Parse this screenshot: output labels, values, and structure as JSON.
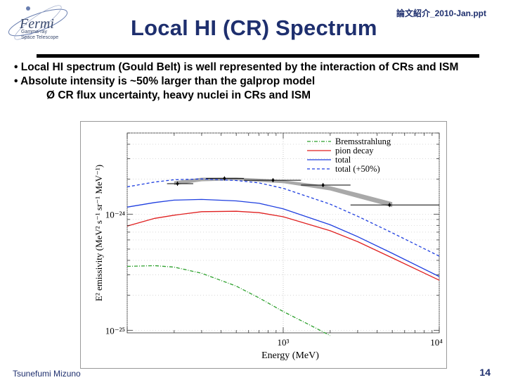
{
  "header": {
    "file_label": "論文紹介_2010-Jan.ppt",
    "title": "Local HI (CR) Spectrum"
  },
  "logo": {
    "name": "Fermi",
    "subtitle_line1": "Gamma-ray",
    "subtitle_line2": "Space Telescope"
  },
  "bullets": [
    "• Local HI spectrum (Gould Belt) is well represented by the interaction of CRs and ISM",
    "• Absolute intensity is ~50% larger than the galprop model",
    "Ø  CR flux uncertainty, heavy nuclei in CRs and ISM"
  ],
  "footer": {
    "author": "Tsunefumi Mizuno",
    "page": "14"
  },
  "colors": {
    "title": "#1e2f6e",
    "bremsstrahlung": "#2ca02c",
    "pion": "#e02020",
    "total": "#1f3fe0",
    "band": "#9a9a9a"
  },
  "chart_data": {
    "type": "line",
    "title": "",
    "xlabel": "Energy (MeV)",
    "ylabel": "E² emissivity (MeV² s⁻¹ sr⁻¹ MeV⁻¹)",
    "xscale": "log",
    "yscale": "log",
    "xlim": [
      100,
      10000
    ],
    "ylim": [
      9.5e-26,
      5e-24
    ],
    "x_tick_labels": [
      "10³",
      "10⁴"
    ],
    "y_tick_labels": [
      "10⁻²⁴",
      "10⁻²⁵"
    ],
    "legend_position": "top-right",
    "series": [
      {
        "name": "Bremsstrahlung",
        "style": "dash-dot",
        "color": "#2ca02c",
        "x": [
          100,
          150,
          200,
          300,
          500,
          700,
          1000,
          1500,
          2000
        ],
        "y": [
          3.55e-25,
          3.6e-25,
          3.5e-25,
          3.1e-25,
          2.4e-25,
          1.9e-25,
          1.45e-25,
          1.1e-25,
          9e-26
        ]
      },
      {
        "name": "pion decay",
        "style": "solid",
        "color": "#e02020",
        "x": [
          100,
          150,
          200,
          300,
          500,
          700,
          1000,
          2000,
          3000,
          5000,
          10000
        ],
        "y": [
          7.9e-25,
          9.2e-25,
          9.8e-25,
          1.05e-24,
          1.06e-24,
          1.03e-24,
          9.5e-25,
          7.2e-25,
          5.8e-25,
          4.2e-25,
          2.7e-25
        ]
      },
      {
        "name": "total",
        "style": "solid",
        "color": "#1f3fe0",
        "x": [
          100,
          150,
          200,
          300,
          500,
          700,
          1000,
          2000,
          3000,
          5000,
          10000
        ],
        "y": [
          1.15e-24,
          1.26e-24,
          1.32e-24,
          1.34e-24,
          1.3e-24,
          1.24e-24,
          1.11e-24,
          8.1e-25,
          6.4e-25,
          4.6e-25,
          2.9e-25
        ]
      },
      {
        "name": "total (+50%)",
        "style": "dashed",
        "color": "#1f3fe0",
        "x": [
          100,
          150,
          200,
          300,
          500,
          700,
          1000,
          2000,
          3000,
          5000,
          10000
        ],
        "y": [
          1.72e-24,
          1.89e-24,
          1.98e-24,
          2.01e-24,
          1.95e-24,
          1.86e-24,
          1.67e-24,
          1.22e-24,
          9.6e-25,
          6.9e-25,
          4.35e-25
        ]
      }
    ],
    "data_points": [
      {
        "x": 210,
        "y": 1.83e-24,
        "xerr": [
          180,
          265
        ]
      },
      {
        "x": 420,
        "y": 2.03e-24,
        "xerr": [
          320,
          560
        ]
      },
      {
        "x": 860,
        "y": 1.96e-24,
        "xerr": [
          560,
          1300
        ]
      },
      {
        "x": 1800,
        "y": 1.78e-24,
        "xerr": [
          1300,
          2700
        ]
      },
      {
        "x": 4800,
        "y": 1.2e-24,
        "xerr": [
          2700,
          10000
        ]
      }
    ],
    "band": {
      "x": [
        200,
        300,
        500,
        800,
        1000,
        2000,
        3000,
        5000
      ],
      "y_low": [
        1.78e-24,
        1.92e-24,
        1.96e-24,
        1.88e-24,
        1.85e-24,
        1.6e-24,
        1.38e-24,
        1.15e-24
      ],
      "y_high": [
        1.92e-24,
        2.06e-24,
        2.07e-24,
        2e-24,
        1.96e-24,
        1.74e-24,
        1.52e-24,
        1.27e-24
      ]
    }
  }
}
